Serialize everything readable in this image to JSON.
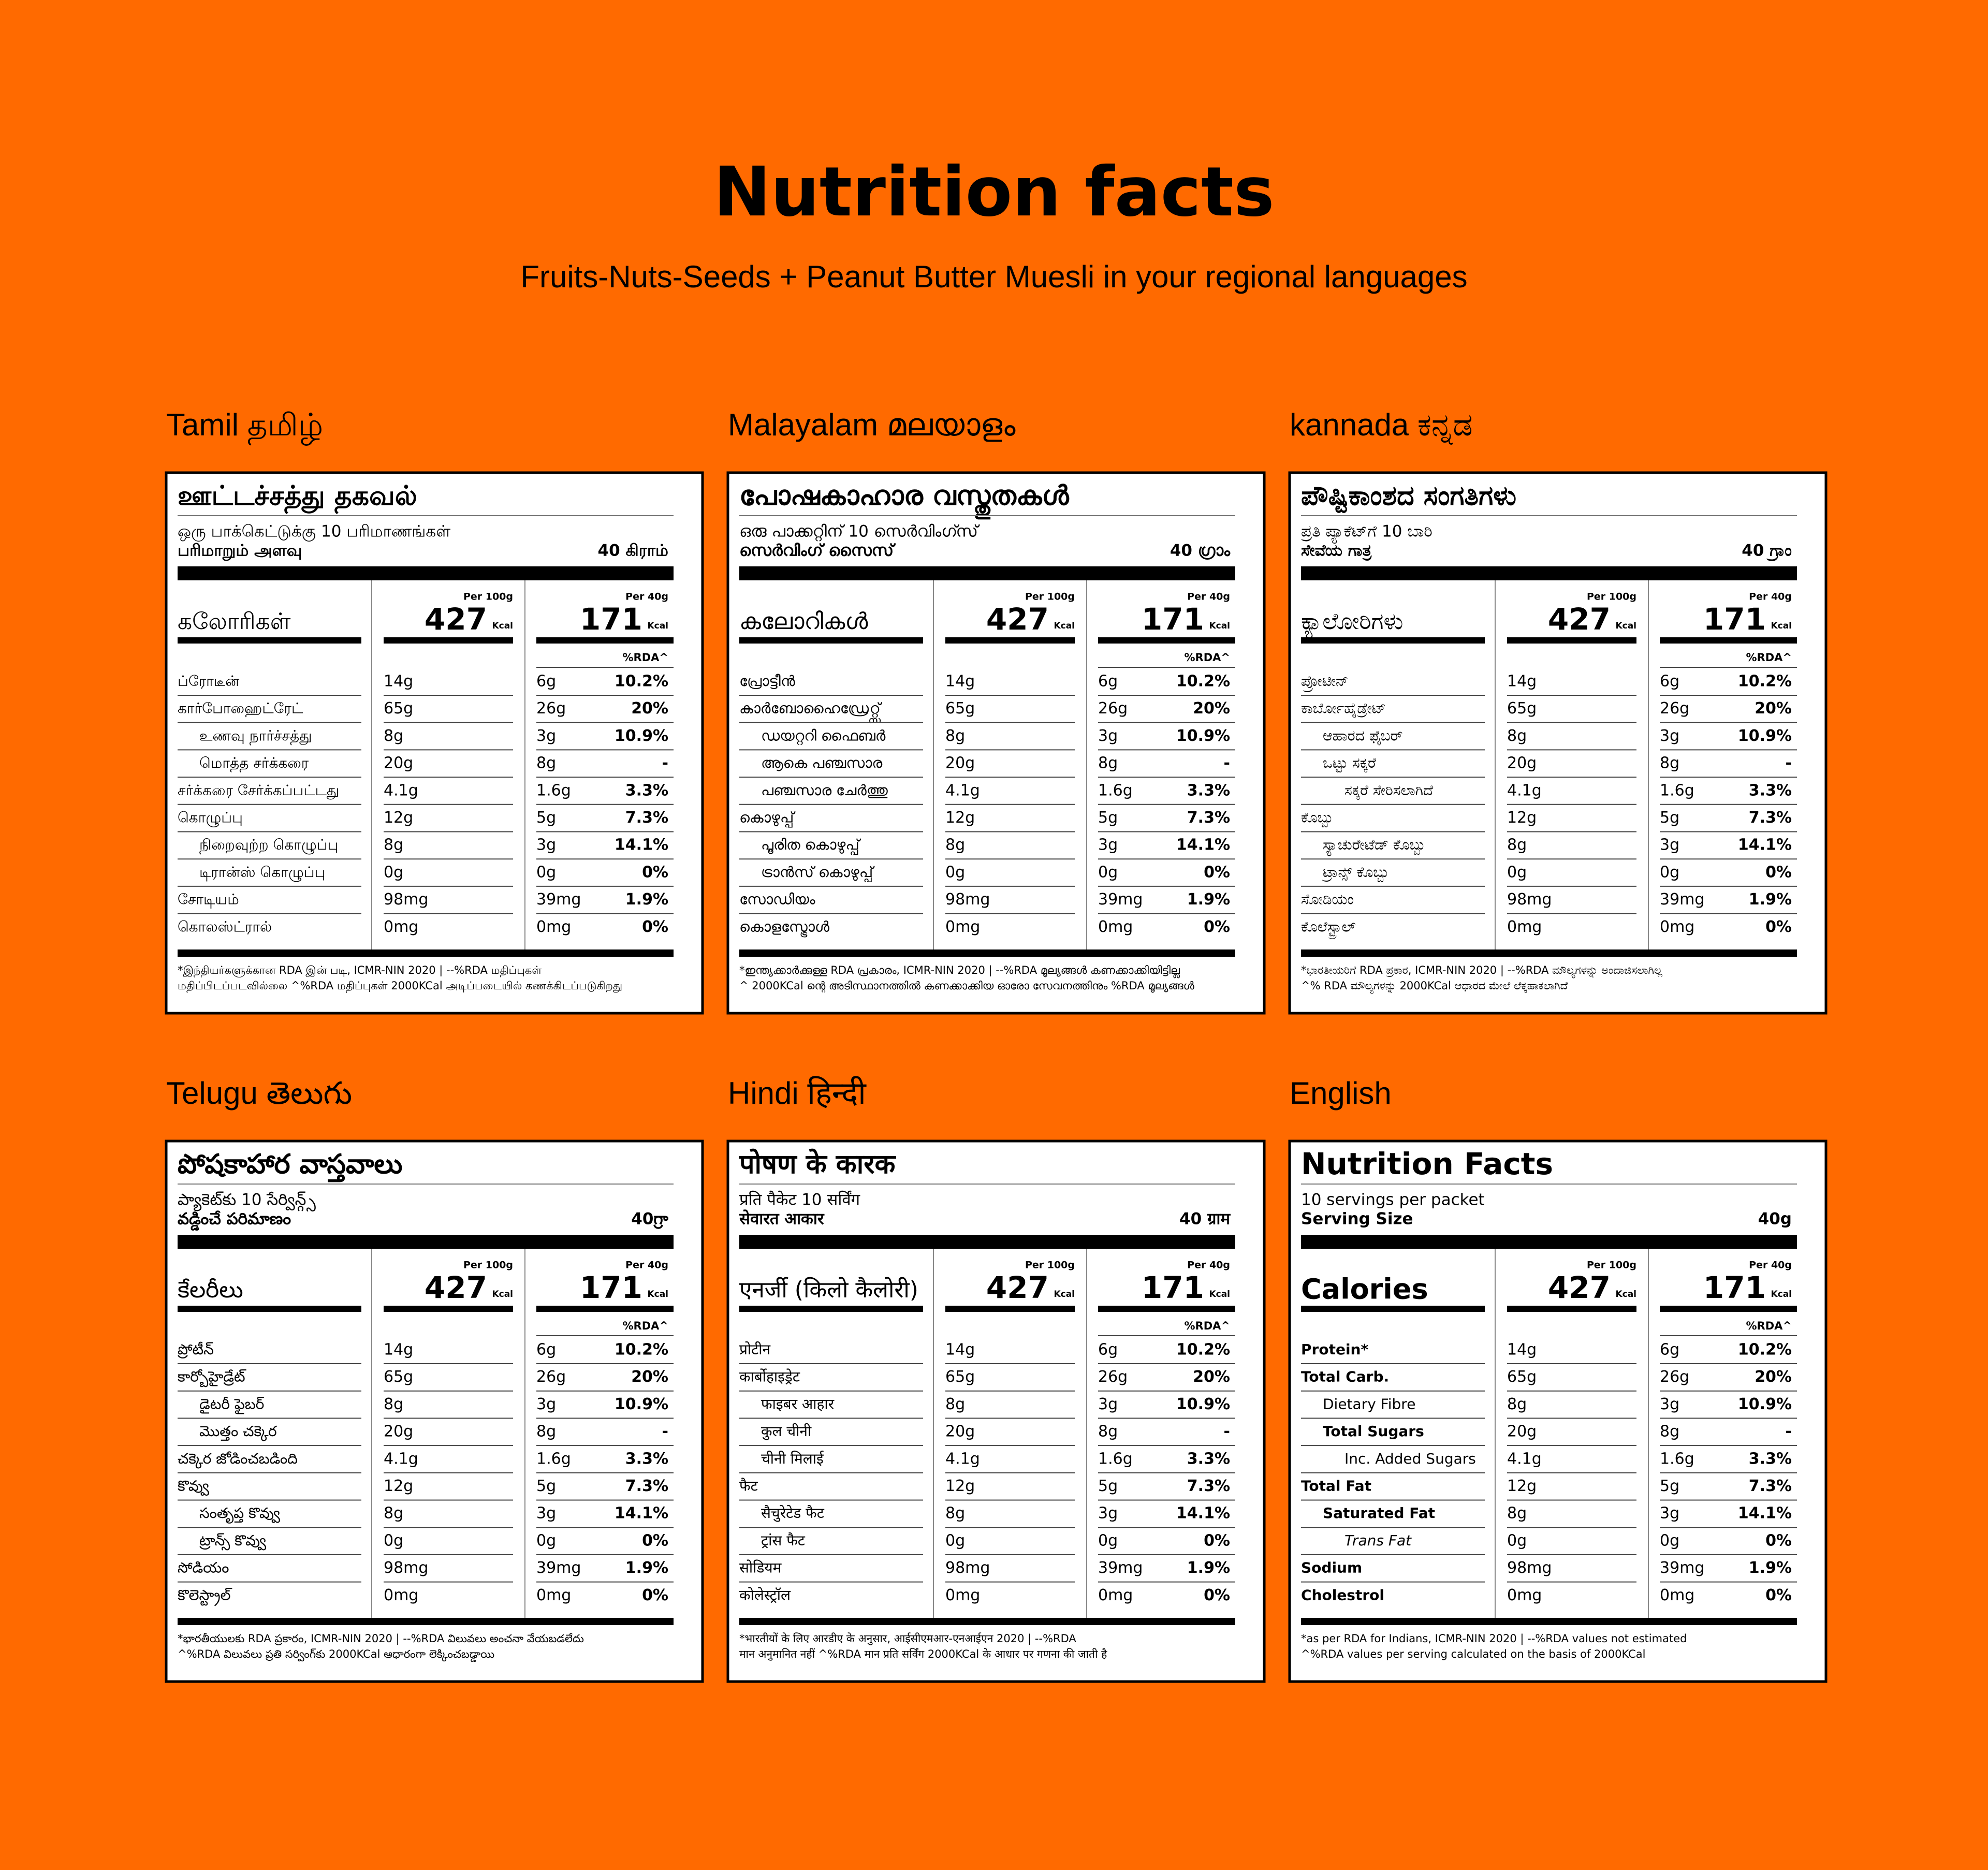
{
  "header": {
    "title": "Nutrition facts",
    "subtitle": "Fruits-Nuts-Seeds + Peanut Butter Muesli in your regional languages"
  },
  "panels": [
    {
      "language": "Tamil தமிழ்",
      "title": "ஊட்டச்சத்து தகவல்",
      "servings": "ஒரு பாக்கெட்டுக்கு 10 பரிமாணங்கள்",
      "serving_size": {
        "label": "பரிமாறும் அளவு",
        "value": "40 கிராம்"
      },
      "calories": {
        "label": "கலோரிகள்",
        "per_100g_label": "Per 100g",
        "per_100g": "427",
        "per_100g_unit": "Kcal",
        "per_40g_label": "Per 40g",
        "per_40g": "171",
        "per_40g_unit": "Kcal"
      },
      "rda_label": "%RDA^",
      "rows": [
        {
          "name": "ப்ரோடீன்",
          "per_100g": "14g",
          "per_40g": "6g",
          "rda": "10.2%"
        },
        {
          "name": "கார்போஹைட்ரேட்",
          "per_100g": "65g",
          "per_40g": "26g",
          "rda": "20%"
        },
        {
          "name": "உணவு நார்ச்சத்து",
          "per_100g": "8g",
          "per_40g": "3g",
          "rda": "10.9%"
        },
        {
          "name": "மொத்த சர்க்கரை",
          "per_100g": "20g",
          "per_40g": "8g",
          "rda": "-"
        },
        {
          "name": "சர்க்கரை சேர்க்கப்பட்டது",
          "per_100g": "4.1g",
          "per_40g": "1.6g",
          "rda": "3.3%"
        },
        {
          "name": "கொழுப்பு",
          "per_100g": "12g",
          "per_40g": "5g",
          "rda": "7.3%"
        },
        {
          "name": "நிறைவுற்ற கொழுப்பு",
          "per_100g": "8g",
          "per_40g": "3g",
          "rda": "14.1%"
        },
        {
          "name": "டிரான்ஸ் கொழுப்பு",
          "per_100g": "0g",
          "per_40g": "0g",
          "rda": "0%"
        },
        {
          "name": "சோடியம்",
          "per_100g": "98mg",
          "per_40g": "39mg",
          "rda": "1.9%"
        },
        {
          "name": "கொலஸ்ட்ரால்",
          "per_100g": "0mg",
          "per_40g": "0mg",
          "rda": "0%"
        }
      ],
      "footnote": [
        "*இந்தியர்களுக்கான RDA இன் படி, ICMR-NIN 2020 | --%RDA மதிப்புகள்",
        "மதிப்பிடப்படவில்லை ^%RDA மதிப்புகள் 2000KCal அடிப்படையில் கணக்கிடப்படுகிறது"
      ]
    },
    {
      "language": "Malayalam മലയാളം",
      "title": "പോഷകാഹാര വസ്തുതകൾ",
      "servings": "ഒരു പാക്കറ്റിന് 10 സെർവിംഗ്സ്",
      "serving_size": {
        "label": "സെർവിംഗ് സൈസ്",
        "value": "40 ഗ്രാം"
      },
      "calories": {
        "label": "കലോറികൾ",
        "per_100g_label": "Per 100g",
        "per_100g": "427",
        "per_100g_unit": "Kcal",
        "per_40g_label": "Per 40g",
        "per_40g": "171",
        "per_40g_unit": "Kcal"
      },
      "rda_label": "%RDA^",
      "rows": [
        {
          "name": "പ്രോട്ടീൻ",
          "per_100g": "14g",
          "per_40g": "6g",
          "rda": "10.2%"
        },
        {
          "name": "കാർബോഹൈഡ്രേറ്റ്സ്",
          "per_100g": "65g",
          "per_40g": "26g",
          "rda": "20%"
        },
        {
          "name": "ഡയറ്ററി ഫൈബർ",
          "per_100g": "8g",
          "per_40g": "3g",
          "rda": "10.9%"
        },
        {
          "name": "ആകെ പഞ്ചസാര",
          "per_100g": "20g",
          "per_40g": "8g",
          "rda": "-"
        },
        {
          "name": "പഞ്ചസാര ചേർത്തു",
          "per_100g": "4.1g",
          "per_40g": "1.6g",
          "rda": "3.3%"
        },
        {
          "name": "കൊഴുപ്പ്",
          "per_100g": "12g",
          "per_40g": "5g",
          "rda": "7.3%"
        },
        {
          "name": "പൂരിത കൊഴുപ്പ്",
          "per_100g": "8g",
          "per_40g": "3g",
          "rda": "14.1%"
        },
        {
          "name": "ട്രാൻസ് കൊഴുപ്പ്",
          "per_100g": "0g",
          "per_40g": "0g",
          "rda": "0%"
        },
        {
          "name": "സോഡിയം",
          "per_100g": "98mg",
          "per_40g": "39mg",
          "rda": "1.9%"
        },
        {
          "name": "കൊളസ്ട്രോൾ",
          "per_100g": "0mg",
          "per_40g": "0mg",
          "rda": "0%"
        }
      ],
      "footnote": [
        "*ഇന്ത്യക്കാർക്കുള്ള RDA പ്രകാരം, ICMR-NIN 2020 | --%RDA മൂല്യങ്ങൾ കണക്കാക്കിയിട്ടില്ല",
        "^ 2000KCal ന്റെ അടിസ്ഥാനത്തിൽ കണക്കാക്കിയ ഓരോ സേവനത്തിനും %RDA മൂല്യങ്ങൾ"
      ]
    },
    {
      "language": "kannada ಕನ್ನಡ",
      "title": "ಪೌಷ್ಟಿಕಾಂಶದ ಸಂಗತಿಗಳು",
      "servings": "ಪ್ರತಿ ಪ್ಯಾಕೆಟ್‌ಗೆ 10 ಬಾರಿ",
      "serving_size": {
        "label": "ಸೇವೆಯ ಗಾತ್ರ",
        "value": "40 ಗ್ರಾಂ"
      },
      "calories": {
        "label": "ಕ್ಯಾಲೋರಿಗಳು",
        "per_100g_label": "Per 100g",
        "per_100g": "427",
        "per_100g_unit": "Kcal",
        "per_40g_label": "Per 40g",
        "per_40g": "171",
        "per_40g_unit": "Kcal"
      },
      "rda_label": "%RDA^",
      "rows": [
        {
          "name": "ಪ್ರೋಟೀನ್",
          "per_100g": "14g",
          "per_40g": "6g",
          "rda": "10.2%"
        },
        {
          "name": "ಕಾರ್ಬೋಹೈಡ್ರೇಟ್",
          "per_100g": "65g",
          "per_40g": "26g",
          "rda": "20%"
        },
        {
          "name": "ಆಹಾರದ ಫೈಬರ್",
          "per_100g": "8g",
          "per_40g": "3g",
          "rda": "10.9%"
        },
        {
          "name": "ಒಟ್ಟು ಸಕ್ಕರೆ",
          "per_100g": "20g",
          "per_40g": "8g",
          "rda": "-"
        },
        {
          "name": "ಸಕ್ಕರೆ ಸೇರಿಸಲಾಗಿದೆ",
          "per_100g": "4.1g",
          "per_40g": "1.6g",
          "rda": "3.3%"
        },
        {
          "name": "ಕೊಬ್ಬು",
          "per_100g": "12g",
          "per_40g": "5g",
          "rda": "7.3%"
        },
        {
          "name": "ಸ್ಯಾಚುರೇಟೆಡ್ ಕೊಬ್ಬು",
          "per_100g": "8g",
          "per_40g": "3g",
          "rda": "14.1%"
        },
        {
          "name": "ಟ್ರಾನ್ಸ್ ಕೊಬ್ಬು",
          "per_100g": "0g",
          "per_40g": "0g",
          "rda": "0%"
        },
        {
          "name": "ಸೋಡಿಯಂ",
          "per_100g": "98mg",
          "per_40g": "39mg",
          "rda": "1.9%"
        },
        {
          "name": "ಕೊಲೆಸ್ಟ್ರಾಲ್",
          "per_100g": "0mg",
          "per_40g": "0mg",
          "rda": "0%"
        }
      ],
      "footnote": [
        "*ಭಾರತೀಯರಿಗೆ RDA ಪ್ರಕಾರ, ICMR-NIN 2020 | --%RDA ಮೌಲ್ಯಗಳನ್ನು ಅಂದಾಜಿಸಲಾಗಿಲ್ಲ",
        "^% RDA ಮೌಲ್ಯಗಳನ್ನು 2000KCal ಆಧಾರದ ಮೇಲೆ ಲೆಕ್ಕಹಾಕಲಾಗಿದೆ"
      ]
    },
    {
      "language": "Telugu తెలుగు",
      "title": "పోషకాహార వాస్తవాలు",
      "servings": "ప్యాకెట్‌కు 10 సేర్విన్గ్స్",
      "serving_size": {
        "label": "వడ్డించే పరిమాణం",
        "value": "40గ్రా"
      },
      "calories": {
        "label": "కేలరీలు",
        "per_100g_label": "Per 100g",
        "per_100g": "427",
        "per_100g_unit": "Kcal",
        "per_40g_label": "Per 40g",
        "per_40g": "171",
        "per_40g_unit": "Kcal"
      },
      "rda_label": "%RDA^",
      "rows": [
        {
          "name": "ప్రోటీన్",
          "per_100g": "14g",
          "per_40g": "6g",
          "rda": "10.2%"
        },
        {
          "name": "కార్బోహైడ్రేట్",
          "per_100g": "65g",
          "per_40g": "26g",
          "rda": "20%"
        },
        {
          "name": "డైటరీ ఫైబర్",
          "per_100g": "8g",
          "per_40g": "3g",
          "rda": "10.9%"
        },
        {
          "name": "మొత్తం చక్కెర",
          "per_100g": "20g",
          "per_40g": "8g",
          "rda": "-"
        },
        {
          "name": "చక్కెర జోడించబడింది",
          "per_100g": "4.1g",
          "per_40g": "1.6g",
          "rda": "3.3%"
        },
        {
          "name": "కొవ్వు",
          "per_100g": "12g",
          "per_40g": "5g",
          "rda": "7.3%"
        },
        {
          "name": "సంతృప్త కొవ్వు",
          "per_100g": "8g",
          "per_40g": "3g",
          "rda": "14.1%"
        },
        {
          "name": "ట్రాన్స్ కొవ్వు",
          "per_100g": "0g",
          "per_40g": "0g",
          "rda": "0%"
        },
        {
          "name": "సోడియం",
          "per_100g": "98mg",
          "per_40g": "39mg",
          "rda": "1.9%"
        },
        {
          "name": "కొలెస్ట్రాల్",
          "per_100g": "0mg",
          "per_40g": "0mg",
          "rda": "0%"
        }
      ],
      "footnote": [
        "*భారతీయులకు RDA ప్రకారం, ICMR-NIN 2020 | --%RDA విలువలు అంచనా వేయబడలేదు",
        "^%RDA విలువలు ప్రతి సర్వింగ్‌కు 2000KCal ఆధారంగా లెక్కించబడ్డాయి"
      ]
    },
    {
      "language": "Hindi हिन्दी",
      "title": "पोषण के कारक",
      "servings": "प्रति पैकेट 10 सर्विंग",
      "serving_size": {
        "label": "सेवारत आकार",
        "value": "40 ग्राम"
      },
      "calories": {
        "label": "एनर्जी (किलो कैलोरी)",
        "per_100g_label": "Per 100g",
        "per_100g": "427",
        "per_100g_unit": "Kcal",
        "per_40g_label": "Per 40g",
        "per_40g": "171",
        "per_40g_unit": "Kcal"
      },
      "rda_label": "%RDA^",
      "rows": [
        {
          "name": "प्रोटीन",
          "per_100g": "14g",
          "per_40g": "6g",
          "rda": "10.2%"
        },
        {
          "name": "कार्बोहाइड्रेट",
          "per_100g": "65g",
          "per_40g": "26g",
          "rda": "20%"
        },
        {
          "name": "फाइबर आहार",
          "per_100g": "8g",
          "per_40g": "3g",
          "rda": "10.9%"
        },
        {
          "name": "कुल चीनी",
          "per_100g": "20g",
          "per_40g": "8g",
          "rda": "-"
        },
        {
          "name": "चीनी मिलाई",
          "per_100g": "4.1g",
          "per_40g": "1.6g",
          "rda": "3.3%"
        },
        {
          "name": "फैट",
          "per_100g": "12g",
          "per_40g": "5g",
          "rda": "7.3%"
        },
        {
          "name": "सैचुरेटेड फैट",
          "per_100g": "8g",
          "per_40g": "3g",
          "rda": "14.1%"
        },
        {
          "name": "ट्रांस फैट",
          "per_100g": "0g",
          "per_40g": "0g",
          "rda": "0%"
        },
        {
          "name": "सोडियम",
          "per_100g": "98mg",
          "per_40g": "39mg",
          "rda": "1.9%"
        },
        {
          "name": "कोलेस्ट्रॉल",
          "per_100g": "0mg",
          "per_40g": "0mg",
          "rda": "0%"
        }
      ],
      "footnote": [
        "*भारतीयों के लिए आरडीए के अनुसार, आईसीएमआर-एनआईएन 2020 | --%RDA",
        "मान अनुमानित नहीं ^%RDA मान प्रति सर्विंग 2000KCal के आधार पर गणना की जाती है"
      ]
    },
    {
      "language": "English",
      "title": "Nutrition Facts",
      "servings": "10 servings per packet",
      "serving_size": {
        "label": "Serving Size",
        "value": "40g"
      },
      "calories": {
        "label": "Calories",
        "per_100g_label": "Per 100g",
        "per_100g": "427",
        "per_100g_unit": "Kcal",
        "per_40g_label": "Per 40g",
        "per_40g": "171",
        "per_40g_unit": "Kcal"
      },
      "rda_label": "%RDA^",
      "rows": [
        {
          "name": "Protein*",
          "per_100g": "14g",
          "per_40g": "6g",
          "rda": "10.2%"
        },
        {
          "name": "Total Carb.",
          "per_100g": "65g",
          "per_40g": "26g",
          "rda": "20%"
        },
        {
          "name": "Dietary Fibre",
          "per_100g": "8g",
          "per_40g": "3g",
          "rda": "10.9%"
        },
        {
          "name": "Total Sugars",
          "per_100g": "20g",
          "per_40g": "8g",
          "rda": "-"
        },
        {
          "name": "Inc. Added Sugars",
          "per_100g": "4.1g",
          "per_40g": "1.6g",
          "rda": "3.3%"
        },
        {
          "name": "Total Fat",
          "per_100g": "12g",
          "per_40g": "5g",
          "rda": "7.3%"
        },
        {
          "name": "Saturated Fat",
          "per_100g": "8g",
          "per_40g": "3g",
          "rda": "14.1%"
        },
        {
          "name": "Trans Fat",
          "per_100g": "0g",
          "per_40g": "0g",
          "rda": "0%"
        },
        {
          "name": "Sodium",
          "per_100g": "98mg",
          "per_40g": "39mg",
          "rda": "1.9%"
        },
        {
          "name": "Cholestrol",
          "per_100g": "0mg",
          "per_40g": "0mg",
          "rda": "0%"
        }
      ],
      "footnote": [
        "*as per RDA for Indians, ICMR-NIN 2020 | --%RDA values not estimated",
        "^%RDA values per serving calculated on the basis of 2000KCal"
      ]
    }
  ]
}
